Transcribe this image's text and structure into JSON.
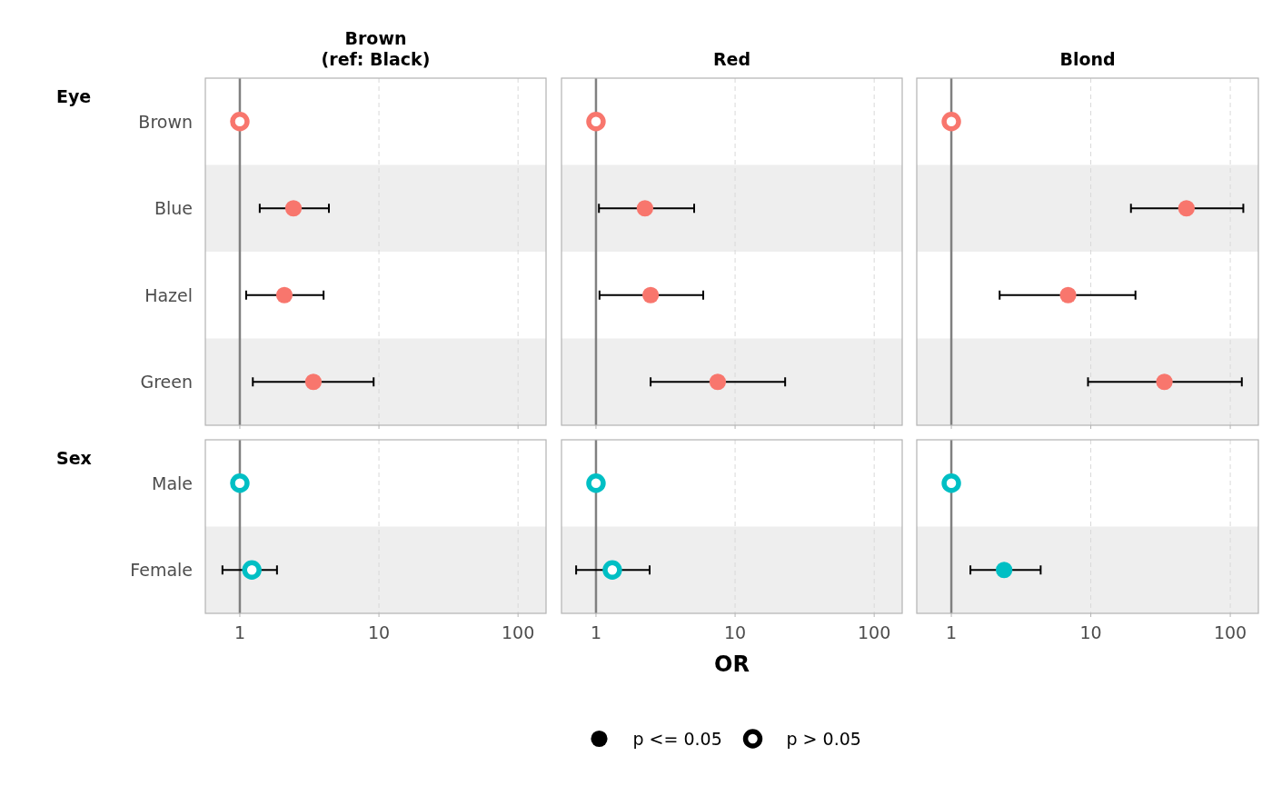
{
  "chart_data": [
    {
      "type": "scatter",
      "title": "Brown\n(ref: Black)",
      "ylabel": "Eye",
      "orientation": "horizontal",
      "categories": [
        "Brown",
        "Blue",
        "Hazel",
        "Green"
      ],
      "log": "x",
      "xlim": [
        0.565,
        159
      ],
      "xticks": [
        1,
        10,
        100
      ],
      "grid": "x",
      "tick_labels": "y",
      "marker": "circle",
      "ref_lines": [
        {
          "axis": "x",
          "value": 1,
          "color": "#808080"
        }
      ],
      "bands": [
        {
          "axis": "y",
          "from": "Blue",
          "to": "Blue",
          "color": "#eeeeee"
        },
        {
          "axis": "y",
          "from": "Green",
          "to": "Green",
          "color": "#eeeeee"
        }
      ],
      "series": [
        {
          "color": "#f8766d",
          "values": [
            null,
            2.43,
            2.09,
            3.38
          ],
          "errors": [
            null,
            [
              1.39,
              4.37
            ],
            [
              1.11,
              4.0
            ],
            [
              1.24,
              9.16
            ]
          ]
        },
        {
          "color": "#f8766d",
          "values": [
            1,
            null,
            null,
            null
          ]
        }
      ]
    },
    {
      "type": "scatter",
      "title": "Red",
      "orientation": "horizontal",
      "categories": [
        "Brown",
        "Blue",
        "Hazel",
        "Green"
      ],
      "log": "x",
      "xlim": [
        0.565,
        159
      ],
      "xticks": [
        1,
        10,
        100
      ],
      "grid": "x",
      "tick_labels": false,
      "marker": "circle",
      "ref_lines": [
        {
          "axis": "x",
          "value": 1,
          "color": "#808080"
        }
      ],
      "bands": [
        {
          "axis": "y",
          "from": "Blue",
          "to": "Blue",
          "color": "#eeeeee"
        },
        {
          "axis": "y",
          "from": "Green",
          "to": "Green",
          "color": "#eeeeee"
        }
      ],
      "series": [
        {
          "color": "#f8766d",
          "values": [
            null,
            2.25,
            2.47,
            7.5
          ],
          "errors": [
            null,
            [
              1.05,
              5.08
            ],
            [
              1.06,
              5.9
            ],
            [
              2.47,
              22.9
            ]
          ]
        },
        {
          "color": "#f8766d",
          "values": [
            1,
            null,
            null,
            null
          ]
        }
      ]
    },
    {
      "type": "scatter",
      "title": "Blond",
      "orientation": "horizontal",
      "categories": [
        "Brown",
        "Blue",
        "Hazel",
        "Green"
      ],
      "log": "x",
      "xlim": [
        0.565,
        159
      ],
      "xticks": [
        1,
        10,
        100
      ],
      "grid": "x",
      "tick_labels": false,
      "marker": "circle",
      "ref_lines": [
        {
          "axis": "x",
          "value": 1,
          "color": "#808080"
        }
      ],
      "bands": [
        {
          "axis": "y",
          "from": "Blue",
          "to": "Blue",
          "color": "#eeeeee"
        },
        {
          "axis": "y",
          "from": "Green",
          "to": "Green",
          "color": "#eeeeee"
        }
      ],
      "series": [
        {
          "color": "#f8766d",
          "values": [
            null,
            48.5,
            6.87,
            33.7
          ],
          "errors": [
            null,
            [
              19.4,
              124
            ],
            [
              2.22,
              20.9
            ],
            [
              9.55,
              121
            ]
          ]
        },
        {
          "color": "#f8766d",
          "values": [
            1,
            null,
            null,
            null
          ]
        }
      ]
    },
    {
      "type": "scatter",
      "ylabel": "Sex",
      "orientation": "horizontal",
      "categories": [
        "Male",
        "Female"
      ],
      "log": "x",
      "xlim": [
        0.565,
        159
      ],
      "xticks": [
        1,
        10,
        100
      ],
      "grid": "x",
      "marker": "circle",
      "ref_lines": [
        {
          "axis": "x",
          "value": 1,
          "color": "#808080"
        }
      ],
      "bands": [
        {
          "axis": "y",
          "from": "Female",
          "to": "Female",
          "color": "#eeeeee"
        }
      ],
      "series": [
        {
          "color": "#00bfc4",
          "values": [
            1,
            1.22
          ],
          "errors": [
            null,
            [
              0.75,
              1.85
            ]
          ]
        }
      ]
    },
    {
      "type": "scatter",
      "xlabel": "OR",
      "orientation": "horizontal",
      "categories": [
        "Male",
        "Female"
      ],
      "log": "x",
      "xlim": [
        0.565,
        159
      ],
      "xticks": [
        1,
        10,
        100
      ],
      "grid": "x",
      "tick_labels": "x",
      "marker": "circle",
      "ref_lines": [
        {
          "axis": "x",
          "value": 1,
          "color": "#808080"
        }
      ],
      "bands": [
        {
          "axis": "y",
          "from": "Female",
          "to": "Female",
          "color": "#eeeeee"
        }
      ],
      "series": [
        {
          "color": "#00bfc4",
          "values": [
            1,
            1.31
          ],
          "errors": [
            null,
            [
              0.72,
              2.43
            ]
          ]
        }
      ]
    },
    {
      "type": "scatter",
      "orientation": "horizontal",
      "categories": [
        "Male",
        "Female"
      ],
      "log": "x",
      "xlim": [
        0.565,
        159
      ],
      "xticks": [
        1,
        10,
        100
      ],
      "grid": "x",
      "tick_labels": "x",
      "marker": "circle",
      "annotations": [
        "p <= 0.05",
        "p > 0.05"
      ],
      "ref_lines": [
        {
          "axis": "x",
          "value": 1,
          "color": "#808080"
        }
      ],
      "bands": [
        {
          "axis": "y",
          "from": "Female",
          "to": "Female",
          "color": "#eeeeee"
        }
      ],
      "series": [
        {
          "color": "#00bfc4",
          "values": [
            null,
            2.39
          ],
          "errors": [
            null,
            [
              1.37,
              4.37
            ]
          ]
        },
        {
          "color": "#00bfc4",
          "values": [
            1,
            null
          ]
        }
      ]
    }
  ]
}
